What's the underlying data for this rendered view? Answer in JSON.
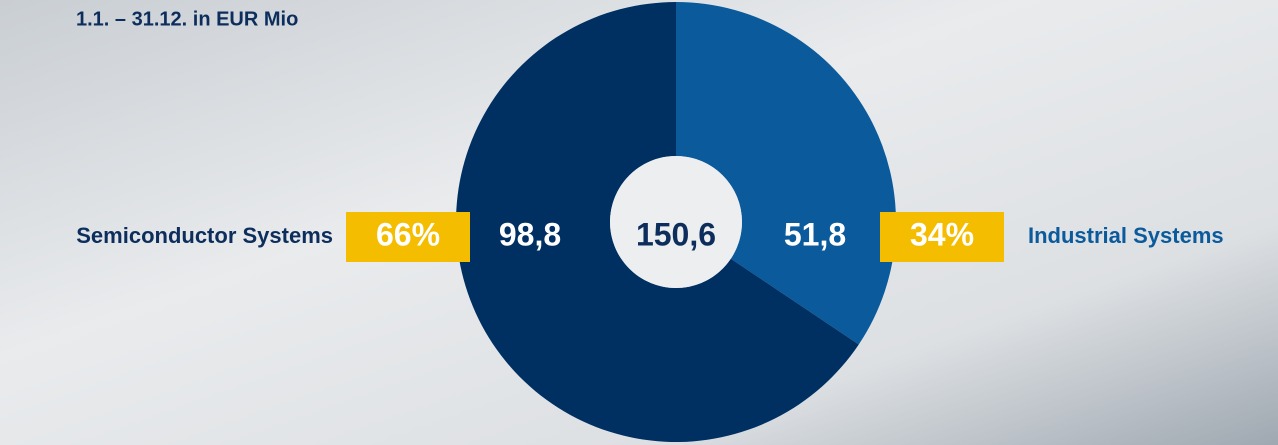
{
  "chart_data": {
    "type": "donut",
    "title": "1.1. – 31.12. in EUR Mio",
    "categories": [
      "Industrial Systems",
      "Semiconductor Systems"
    ],
    "values": [
      51.8,
      98.8
    ],
    "value_labels": [
      "51,8",
      "98,8"
    ],
    "shares": [
      34,
      66
    ],
    "share_labels": [
      "34%",
      "66%"
    ],
    "total": 150.6,
    "total_label": "150,6",
    "colors": [
      "#0a5a9c",
      "#003062"
    ],
    "badge_color": "#f5bd00"
  }
}
